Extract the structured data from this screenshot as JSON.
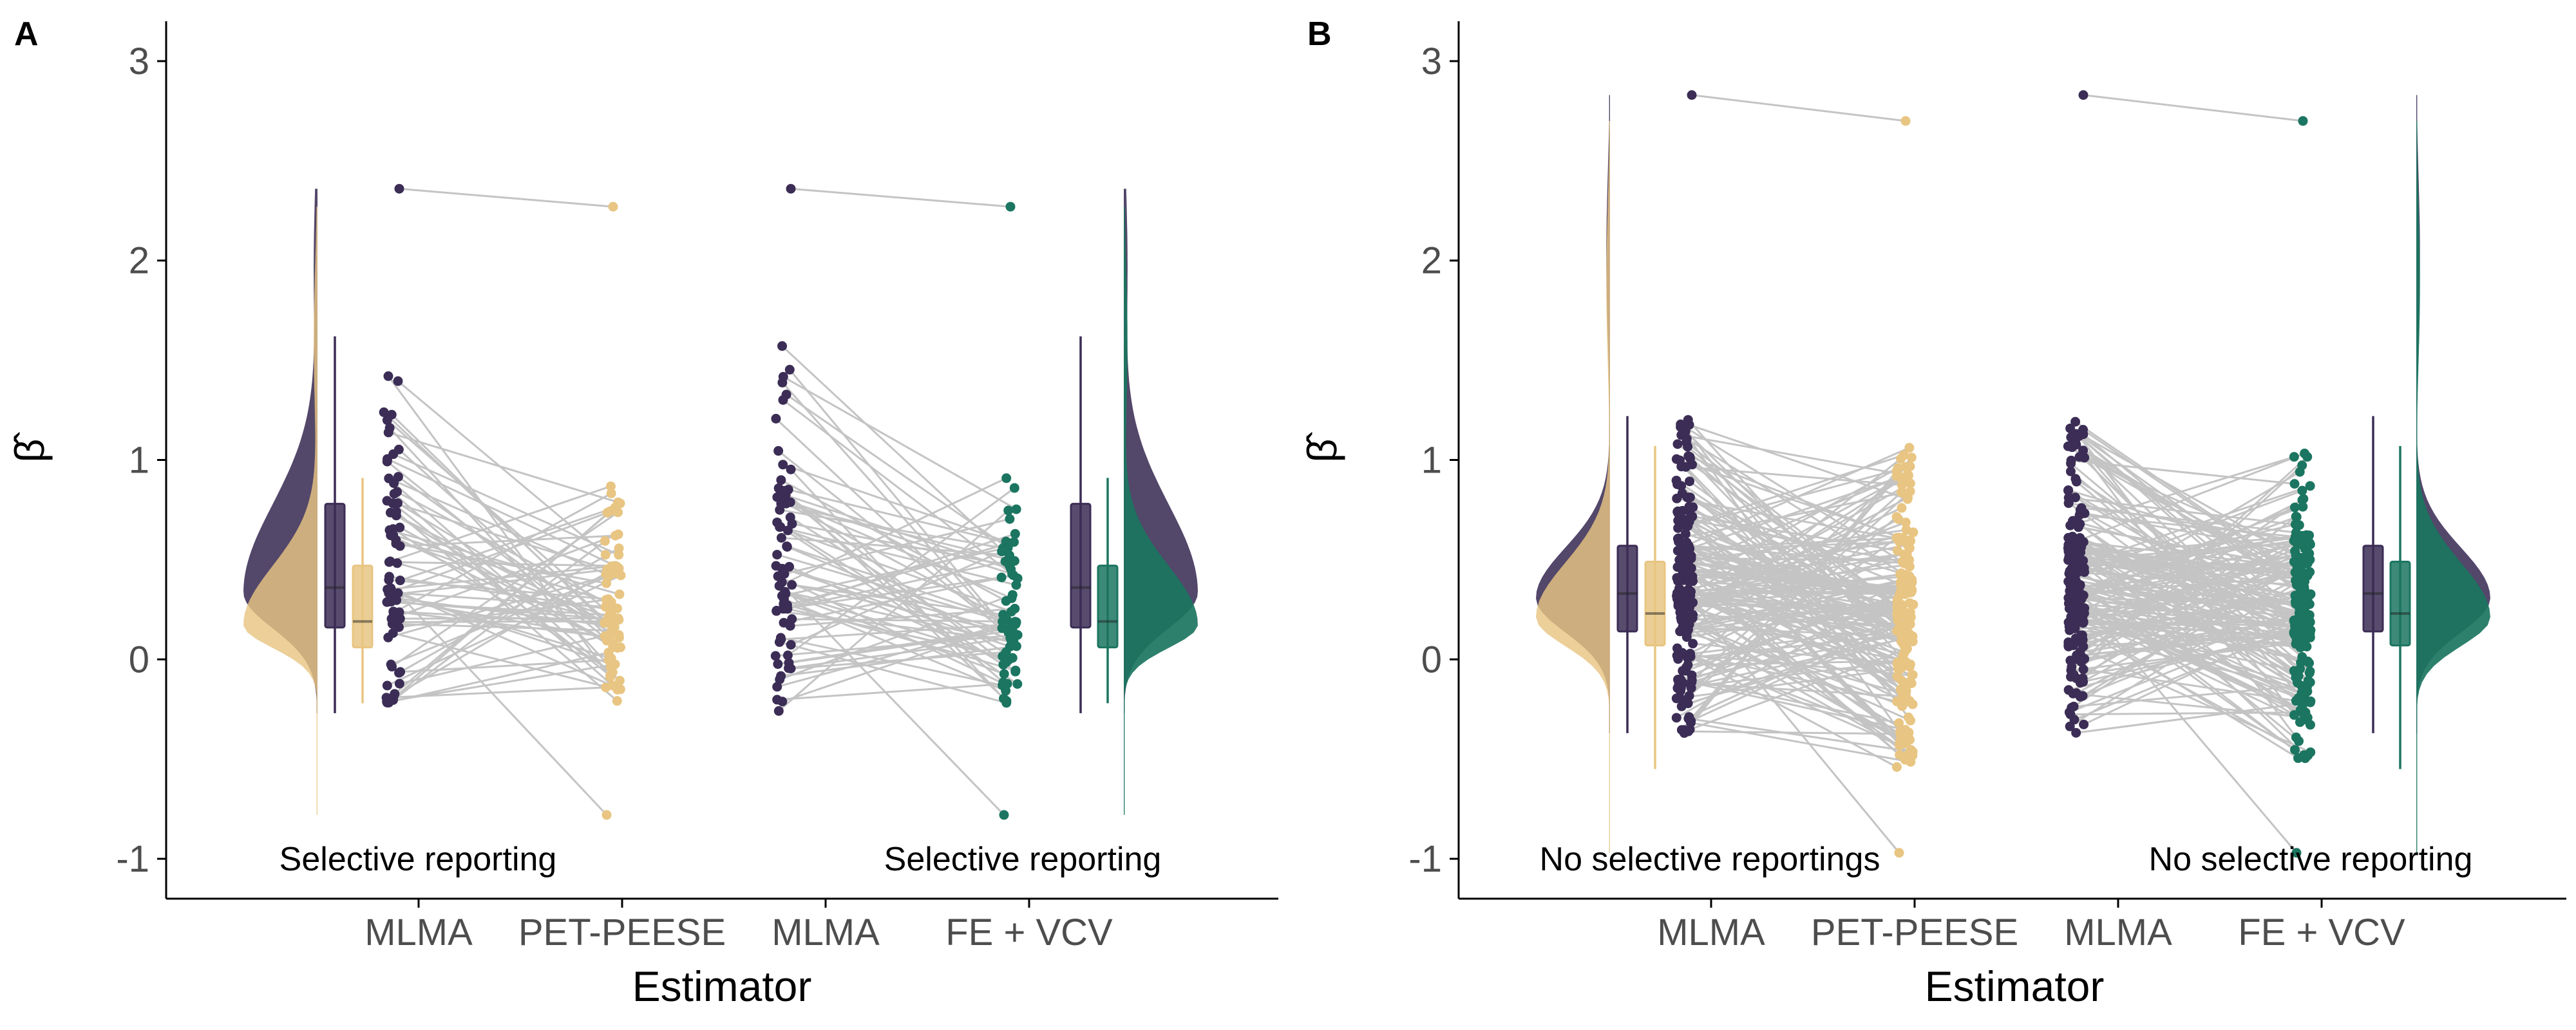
{
  "colors": {
    "mlma": "#3b2d55",
    "pet_peese": "#e8c582",
    "fe_vcv": "#1b7560",
    "connector": "#c4c4c4"
  },
  "chart_data": [
    {
      "panel": "A",
      "type": "raincloud",
      "xlabel": "Estimator",
      "ylabel": "β̂",
      "ylim": [
        -1.2,
        3.2
      ],
      "yticks": [
        -1,
        0,
        1,
        2,
        3
      ],
      "categories": [
        "MLMA",
        "PET-PEESE",
        "MLMA",
        "FE + VCV"
      ],
      "annotations": [
        "Selective reporting",
        "Selective reporting"
      ],
      "comparisons": [
        {
          "left": {
            "name": "MLMA",
            "min": -0.27,
            "q1": 0.16,
            "median": 0.36,
            "q3": 0.78,
            "max": 1.62,
            "outlier_max": 2.36
          },
          "right": {
            "name": "PET-PEESE",
            "min": -0.22,
            "q1": 0.06,
            "median": 0.19,
            "q3": 0.47,
            "max": 0.91,
            "outlier_min": -0.78,
            "outlier_max": 2.27
          }
        },
        {
          "left": {
            "name": "MLMA",
            "min": -0.27,
            "q1": 0.16,
            "median": 0.36,
            "q3": 0.78,
            "max": 1.62,
            "outlier_max": 2.36
          },
          "right": {
            "name": "FE + VCV",
            "min": -0.22,
            "q1": 0.06,
            "median": 0.19,
            "q3": 0.47,
            "max": 0.91,
            "outlier_min": -0.78,
            "outlier_max": 2.27
          }
        }
      ]
    },
    {
      "panel": "B",
      "type": "raincloud",
      "xlabel": "Estimator",
      "ylabel": "β̂",
      "ylim": [
        -1.2,
        3.2
      ],
      "yticks": [
        -1,
        0,
        1,
        2,
        3
      ],
      "categories": [
        "MLMA",
        "PET-PEESE",
        "MLMA",
        "FE + VCV"
      ],
      "annotations": [
        "No selective reportings",
        "No selective reporting"
      ],
      "comparisons": [
        {
          "left": {
            "name": "MLMA",
            "min": -0.37,
            "q1": 0.14,
            "median": 0.33,
            "q3": 0.57,
            "max": 1.22,
            "outlier_max": 2.83
          },
          "right": {
            "name": "PET-PEESE",
            "min": -0.55,
            "q1": 0.07,
            "median": 0.23,
            "q3": 0.49,
            "max": 1.07,
            "outlier_min": -0.97,
            "outlier_max": 2.7
          }
        },
        {
          "left": {
            "name": "MLMA",
            "min": -0.37,
            "q1": 0.14,
            "median": 0.33,
            "q3": 0.57,
            "max": 1.22,
            "outlier_max": 2.83
          },
          "right": {
            "name": "FE + VCV",
            "min": -0.55,
            "q1": 0.07,
            "median": 0.23,
            "q3": 0.49,
            "max": 1.07,
            "outlier_min": -0.97,
            "outlier_max": 2.7
          }
        }
      ]
    }
  ]
}
